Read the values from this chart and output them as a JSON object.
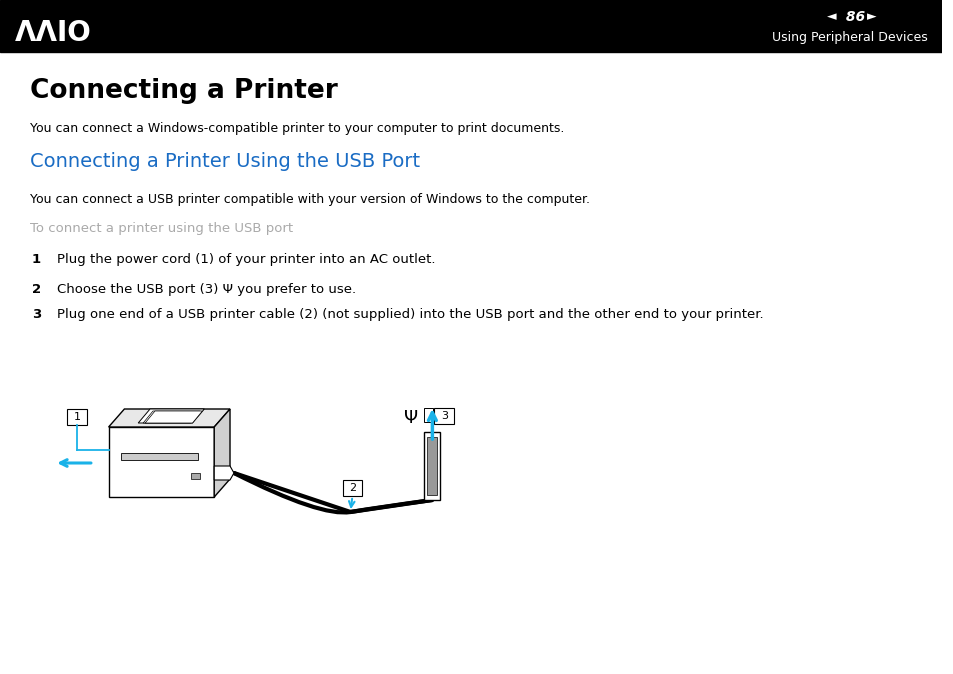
{
  "background_color": "#ffffff",
  "header_bg": "#000000",
  "header_text_color": "#ffffff",
  "header_page_num": "86",
  "header_section": "Using Peripheral Devices",
  "title": "Connecting a Printer",
  "subtitle_blue": "Connecting a Printer Using the USB Port",
  "subtitle_blue_color": "#1a6cc4",
  "body_text1": "You can connect a Windows-compatible printer to your computer to print documents.",
  "body_text2": "You can connect a USB printer compatible with your version of Windows to the computer.",
  "gray_subheading": "To connect a printer using the USB port",
  "gray_color": "#aaaaaa",
  "step1_num": "1",
  "step1": "Plug the power cord (1) of your printer into an AC outlet.",
  "step2_num": "2",
  "step2": "Choose the USB port (3) Ψ you prefer to use.",
  "step3_num": "3",
  "step3": "Plug one end of a USB printer cable (2) (not supplied) into the USB port and the other end to your printer.",
  "cyan_color": "#1ab2e8"
}
